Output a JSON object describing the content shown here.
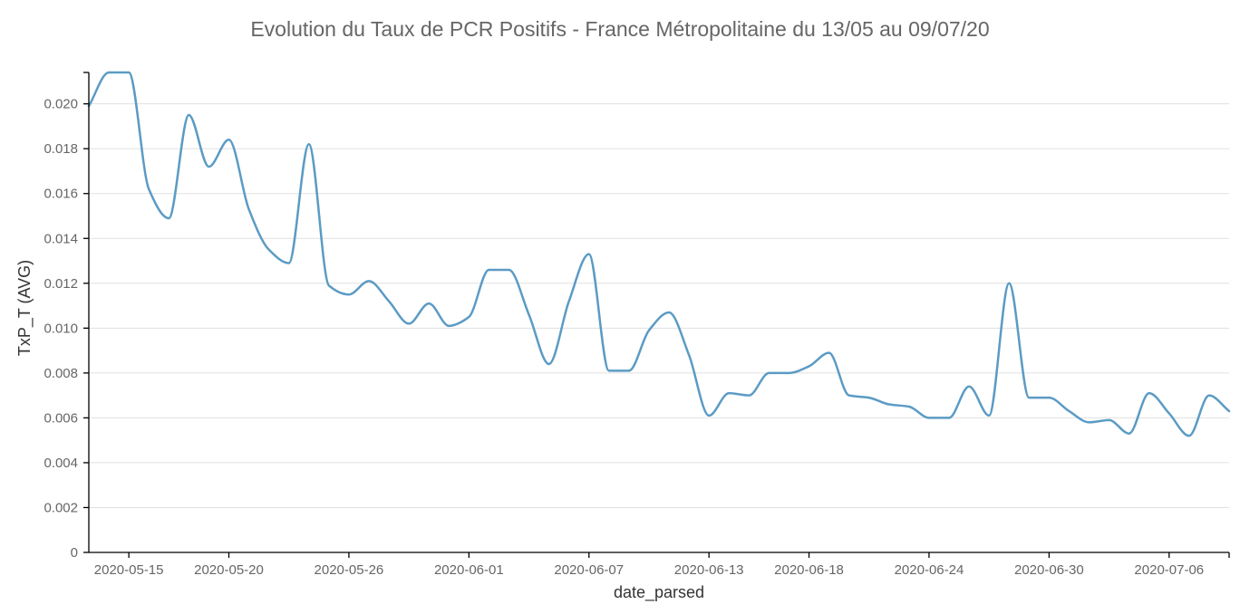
{
  "chart_data": {
    "type": "line",
    "title": "Evolution du Taux de PCR Positifs - France Métropolitaine du 13/05 au 09/07/20",
    "xlabel": "date_parsed",
    "ylabel": "TxP_T (AVG)",
    "xlim": [
      "2020-05-13",
      "2020-07-09"
    ],
    "ylim": [
      0,
      0.0214
    ],
    "grid": true,
    "legend": "none",
    "x_ticks": [
      "2020-05-15",
      "2020-05-20",
      "2020-05-26",
      "2020-06-01",
      "2020-06-07",
      "2020-06-13",
      "2020-06-18",
      "2020-06-24",
      "2020-06-30",
      "2020-07-06"
    ],
    "y_ticks": [
      "0",
      "0.002",
      "0.004",
      "0.006",
      "0.008",
      "0.010",
      "0.012",
      "0.014",
      "0.016",
      "0.018",
      "0.020"
    ],
    "colors": {
      "line": "#5b9bc4"
    },
    "series": [
      {
        "x": [
          "2020-05-13",
          "2020-05-14",
          "2020-05-15",
          "2020-05-16",
          "2020-05-17",
          "2020-05-18",
          "2020-05-19",
          "2020-05-20",
          "2020-05-21",
          "2020-05-22",
          "2020-05-23",
          "2020-05-24",
          "2020-05-25",
          "2020-05-26",
          "2020-05-27",
          "2020-05-28",
          "2020-05-29",
          "2020-05-30",
          "2020-05-31",
          "2020-06-01",
          "2020-06-02",
          "2020-06-03",
          "2020-06-04",
          "2020-06-05",
          "2020-06-06",
          "2020-06-07",
          "2020-06-08",
          "2020-06-09",
          "2020-06-10",
          "2020-06-11",
          "2020-06-12",
          "2020-06-13",
          "2020-06-14",
          "2020-06-15",
          "2020-06-16",
          "2020-06-17",
          "2020-06-18",
          "2020-06-19",
          "2020-06-20",
          "2020-06-21",
          "2020-06-22",
          "2020-06-23",
          "2020-06-24",
          "2020-06-25",
          "2020-06-26",
          "2020-06-27",
          "2020-06-28",
          "2020-06-29",
          "2020-06-30",
          "2020-07-01",
          "2020-07-02",
          "2020-07-03",
          "2020-07-04",
          "2020-07-05",
          "2020-07-06",
          "2020-07-07",
          "2020-07-08",
          "2020-07-09"
        ],
        "values": [
          0.0199,
          0.0214,
          0.0214,
          0.0162,
          0.0149,
          0.0195,
          0.0172,
          0.0184,
          0.0153,
          0.0135,
          0.0129,
          0.0182,
          0.0119,
          0.0115,
          0.0121,
          0.0112,
          0.0102,
          0.0111,
          0.0101,
          0.0105,
          0.0126,
          0.0126,
          0.0106,
          0.0084,
          0.0112,
          0.0133,
          0.0081,
          0.0081,
          0.0099,
          0.0107,
          0.0088,
          0.0061,
          0.0071,
          0.007,
          0.008,
          0.008,
          0.0083,
          0.0089,
          0.007,
          0.0069,
          0.0066,
          0.0065,
          0.006,
          0.006,
          0.0074,
          0.0061,
          0.012,
          0.0069,
          0.0069,
          0.0063,
          0.0058,
          0.0059,
          0.0053,
          0.0071,
          0.0062,
          0.0052,
          0.007,
          0.0063
        ]
      }
    ]
  }
}
